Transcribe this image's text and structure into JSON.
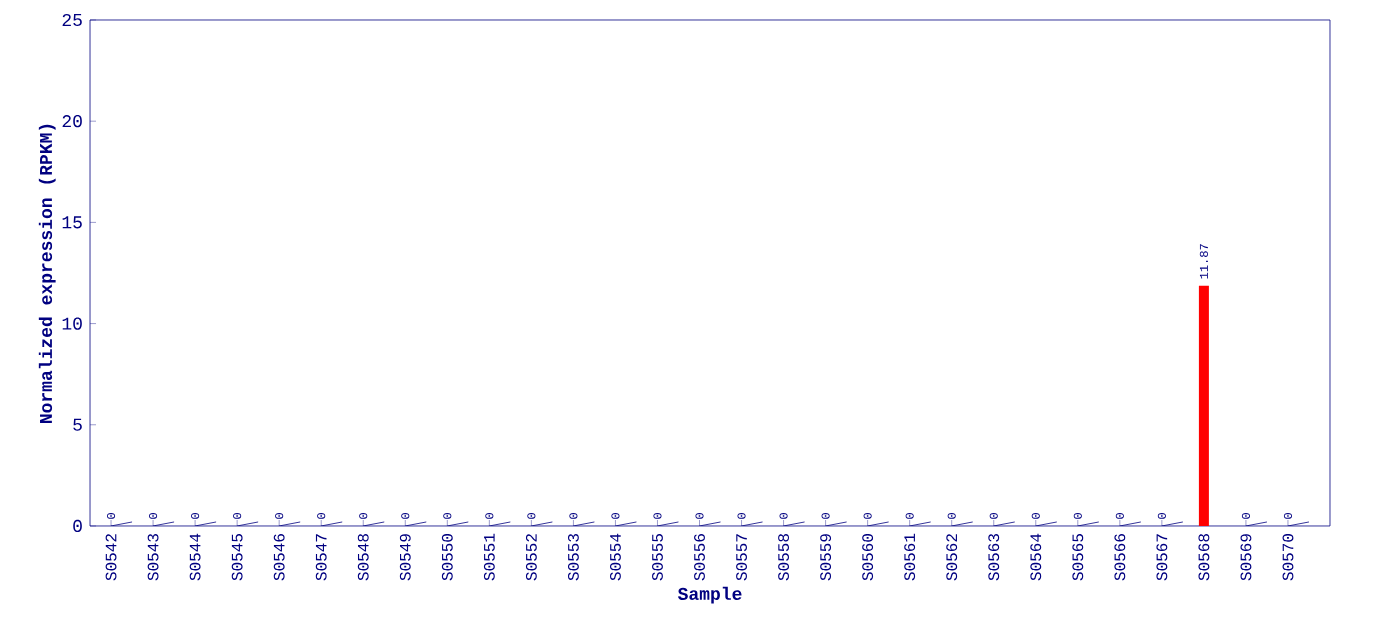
{
  "chart_data": {
    "type": "bar",
    "xlabel": "Sample",
    "ylabel": "Normalized expression (RPKM)",
    "categories": [
      "S0542",
      "S0543",
      "S0544",
      "S0545",
      "S0546",
      "S0547",
      "S0548",
      "S0549",
      "S0550",
      "S0551",
      "S0552",
      "S0553",
      "S0554",
      "S0555",
      "S0556",
      "S0557",
      "S0558",
      "S0559",
      "S0560",
      "S0561",
      "S0562",
      "S0563",
      "S0564",
      "S0565",
      "S0566",
      "S0567",
      "S0568",
      "S0569",
      "S0570"
    ],
    "values": [
      0,
      0,
      0,
      0,
      0,
      0,
      0,
      0,
      0,
      0,
      0,
      0,
      0,
      0,
      0,
      0,
      0,
      0,
      0,
      0,
      0,
      0,
      0,
      0,
      0,
      0,
      11.87,
      0,
      0
    ],
    "color": "#ff0000",
    "ylim": [
      0,
      25
    ],
    "yticks": [
      0,
      5,
      10,
      15,
      20,
      25
    ],
    "data_labels": true
  }
}
